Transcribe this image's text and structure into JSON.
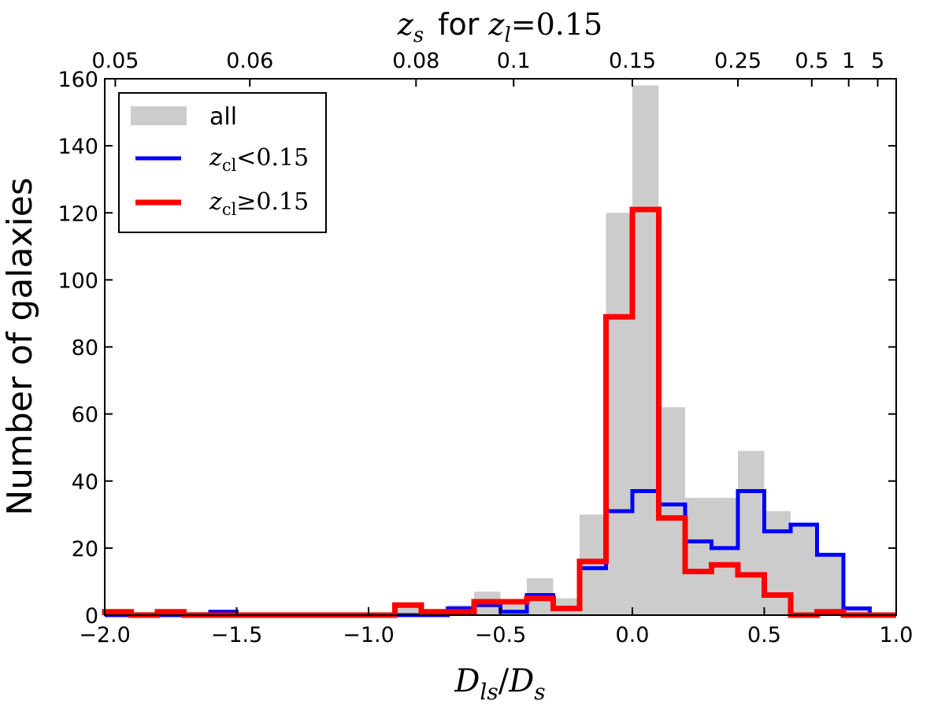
{
  "chart_data": {
    "type": "bar",
    "title": "z_s for z_l = 0.15",
    "title_parts": {
      "var": "z",
      "sub": "s",
      "mid": "for",
      "var2": "z",
      "sub2": "l",
      "val": "=0.15"
    },
    "xlabel": "D_ls/D_s",
    "xlabel_parts": {
      "a": "D",
      "a_sub": "ls",
      "slash": "/",
      "b": "D",
      "b_sub": "s"
    },
    "ylabel": "Number of galaxies",
    "xlim": [
      -2.0,
      1.0
    ],
    "ylim": [
      0,
      160
    ],
    "grid": false,
    "legend_placement": "top-left",
    "x_ticks": [
      -2.0,
      -1.5,
      -1.0,
      -0.5,
      0.0,
      0.5,
      1.0
    ],
    "x_tick_labels": [
      "−2.0",
      "−1.5",
      "−1.0",
      "−0.5",
      "0.0",
      "0.5",
      "1.0"
    ],
    "y_ticks": [
      0,
      20,
      40,
      60,
      80,
      100,
      120,
      140,
      160
    ],
    "y_tick_labels": [
      "0",
      "20",
      "40",
      "60",
      "80",
      "100",
      "120",
      "140",
      "160"
    ],
    "top_ticks": [
      {
        "label": "0.05",
        "x": -1.96
      },
      {
        "label": "0.06",
        "x": -1.45
      },
      {
        "label": "0.08",
        "x": -0.82
      },
      {
        "label": "0.1",
        "x": -0.45
      },
      {
        "label": "0.15",
        "x": 0.0
      },
      {
        "label": "0.25",
        "x": 0.4
      },
      {
        "label": "0.5",
        "x": 0.68
      },
      {
        "label": "1",
        "x": 0.82
      },
      {
        "label": "5",
        "x": 0.93
      }
    ],
    "bin_edges": [
      -2.0,
      -1.9,
      -1.8,
      -1.7,
      -1.6,
      -1.5,
      -1.4,
      -1.3,
      -1.2,
      -1.1,
      -1.0,
      -0.9,
      -0.8,
      -0.7,
      -0.6,
      -0.5,
      -0.4,
      -0.3,
      -0.2,
      -0.1,
      0.0,
      0.1,
      0.2,
      0.3,
      0.4,
      0.5,
      0.6,
      0.7,
      0.8,
      0.9,
      1.0
    ],
    "series": [
      {
        "name": "all",
        "style": "filled",
        "color": "#cccccc",
        "values": [
          1,
          1,
          1,
          1,
          1,
          0,
          0,
          0,
          0,
          0,
          0,
          3,
          1,
          3,
          7,
          4,
          11,
          5,
          30,
          120,
          158,
          62,
          35,
          35,
          49,
          31,
          27,
          18,
          2,
          0
        ]
      },
      {
        "name": "z_cl < 0.15",
        "legend_parts": {
          "var": "z",
          "sub": "cl",
          "op": "<0.15"
        },
        "style": "step",
        "color": "#0000ff",
        "values": [
          0,
          0,
          0,
          0,
          1,
          0,
          0,
          0,
          0,
          0,
          0,
          0,
          0,
          2,
          3,
          1,
          6,
          2,
          14,
          31,
          37,
          33,
          22,
          20,
          37,
          25,
          27,
          18,
          2,
          0
        ]
      },
      {
        "name": "z_cl ≥ 0.15",
        "legend_parts": {
          "var": "z",
          "sub": "cl",
          "op": "≥0.15"
        },
        "style": "step",
        "color": "#ff0000",
        "values": [
          1,
          0,
          1,
          0,
          0,
          0,
          0,
          0,
          0,
          0,
          0,
          3,
          1,
          1,
          4,
          4,
          5,
          2,
          16,
          89,
          121,
          29,
          13,
          15,
          12,
          6,
          0,
          1,
          0,
          0
        ]
      }
    ]
  }
}
